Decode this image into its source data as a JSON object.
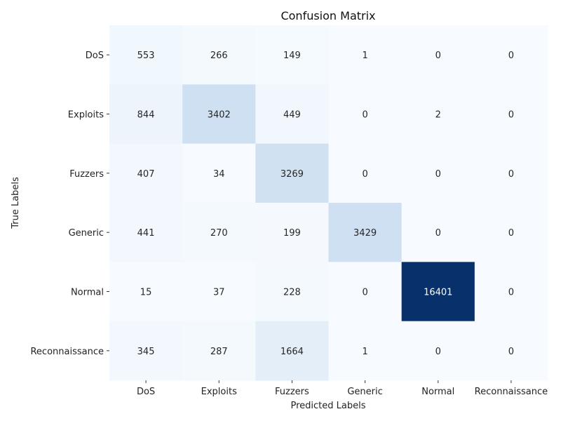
{
  "chart_data": {
    "type": "heatmap",
    "title": "Confusion Matrix",
    "xlabel": "Predicted Labels",
    "ylabel": "True Labels",
    "x_categories": [
      "DoS",
      "Exploits",
      "Fuzzers",
      "Generic",
      "Normal",
      "Reconnaissance"
    ],
    "y_categories": [
      "DoS",
      "Exploits",
      "Fuzzers",
      "Generic",
      "Normal",
      "Reconnaissance"
    ],
    "values": [
      [
        553,
        266,
        149,
        1,
        0,
        0
      ],
      [
        844,
        3402,
        449,
        0,
        2,
        0
      ],
      [
        407,
        34,
        3269,
        0,
        0,
        0
      ],
      [
        441,
        270,
        199,
        3429,
        0,
        0
      ],
      [
        15,
        37,
        228,
        0,
        16401,
        0
      ],
      [
        345,
        287,
        1664,
        1,
        0,
        0
      ]
    ],
    "colormap": "Blues",
    "color_low": "#f7fbff",
    "color_high": "#08306b",
    "colorbar": false,
    "annotations": true,
    "grid": false
  }
}
